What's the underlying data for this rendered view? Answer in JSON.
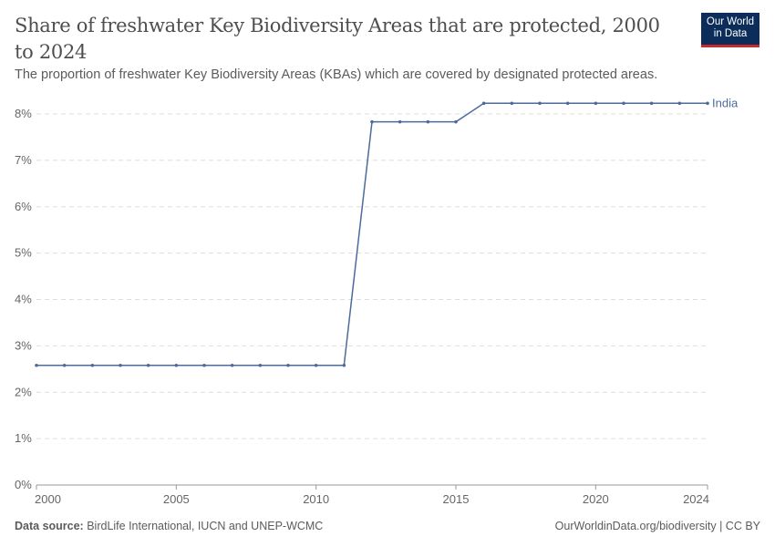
{
  "header": {
    "title": "Share of freshwater Key Biodiversity Areas that are protected, 2000 to 2024",
    "subtitle": "The proportion of freshwater Key Biodiversity Areas (KBAs) which are covered by designated protected areas.",
    "logo_text": "Our World in Data"
  },
  "footer": {
    "source_label": "Data source:",
    "source": "BirdLife International, IUCN and UNEP-WCMC",
    "link": "OurWorldinData.org/biodiversity | CC BY"
  },
  "colors": {
    "series": "#4c6a9c",
    "grid": "#dddddd",
    "text": "#5b5b5b"
  },
  "chart_data": {
    "type": "line",
    "title": "Share of freshwater Key Biodiversity Areas that are protected, 2000 to 2024",
    "xlim": [
      2000,
      2024
    ],
    "ylim": [
      0,
      8
    ],
    "x_ticks": [
      "2000",
      "2005",
      "2010",
      "2015",
      "2020",
      "2024"
    ],
    "y_ticks": [
      "0%",
      "1%",
      "2%",
      "3%",
      "4%",
      "5%",
      "6%",
      "7%",
      "8%"
    ],
    "grid": "horizontal dashed",
    "legend": "end-of-line label",
    "series": [
      {
        "name": "India",
        "x": [
          2000,
          2001,
          2002,
          2003,
          2004,
          2005,
          2006,
          2007,
          2008,
          2009,
          2010,
          2011,
          2012,
          2013,
          2014,
          2015,
          2016,
          2017,
          2018,
          2019,
          2020,
          2021,
          2022,
          2023,
          2024
        ],
        "values": [
          2.58,
          2.58,
          2.58,
          2.58,
          2.58,
          2.58,
          2.58,
          2.58,
          2.58,
          2.58,
          2.58,
          2.58,
          7.83,
          7.83,
          7.83,
          7.83,
          8.23,
          8.23,
          8.23,
          8.23,
          8.23,
          8.23,
          8.23,
          8.23,
          8.23
        ]
      }
    ]
  }
}
